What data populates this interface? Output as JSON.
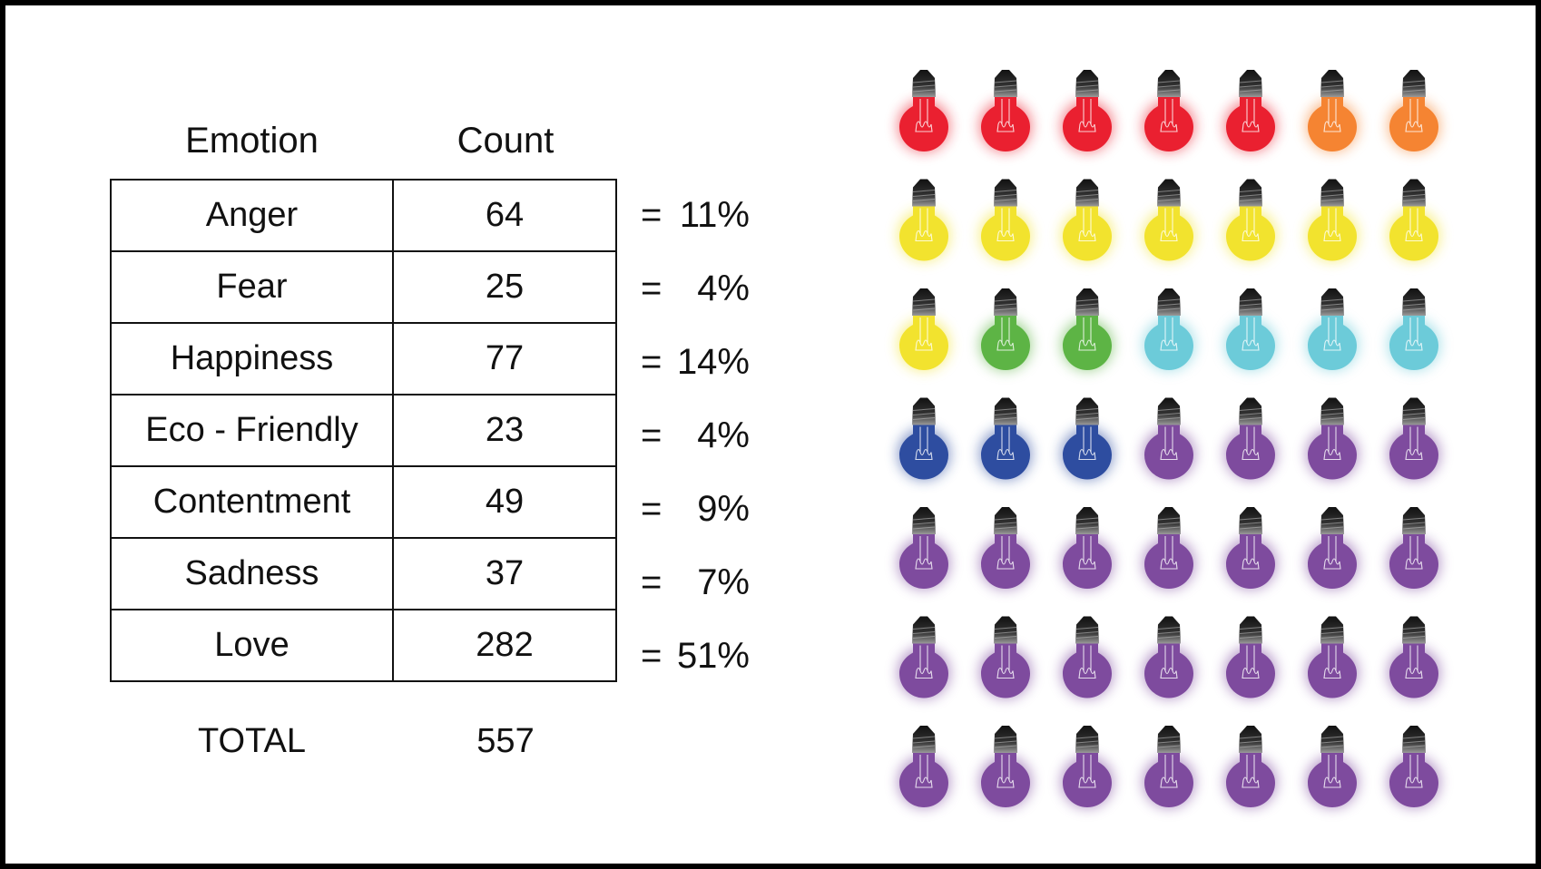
{
  "chart_data": {
    "type": "table",
    "columns": [
      "Emotion",
      "Count"
    ],
    "rows": [
      {
        "emotion": "Anger",
        "count": 64,
        "eq": "=",
        "pct": "11%",
        "color": "#ea2030"
      },
      {
        "emotion": "Fear",
        "count": 25,
        "eq": "=",
        "pct": "4%",
        "color": "#f58432"
      },
      {
        "emotion": "Happiness",
        "count": 77,
        "eq": "=",
        "pct": "14%",
        "color": "#f2e32e"
      },
      {
        "emotion": "Eco - Friendly",
        "count": 23,
        "eq": "=",
        "pct": "4%",
        "color": "#5db445"
      },
      {
        "emotion": "Contentment",
        "count": 49,
        "eq": "=",
        "pct": "9%",
        "color": "#6ccbd9"
      },
      {
        "emotion": "Sadness",
        "count": 37,
        "eq": "=",
        "pct": "7%",
        "color": "#2e4da0"
      },
      {
        "emotion": "Love",
        "count": 282,
        "eq": "=",
        "pct": "51%",
        "color": "#7e4b9e"
      }
    ],
    "total_label": "TOTAL",
    "total_value": 557,
    "pictograph": {
      "icon": "light-bulb-icon",
      "bulb_counts": [
        5,
        2,
        8,
        2,
        4,
        3,
        25
      ]
    }
  }
}
